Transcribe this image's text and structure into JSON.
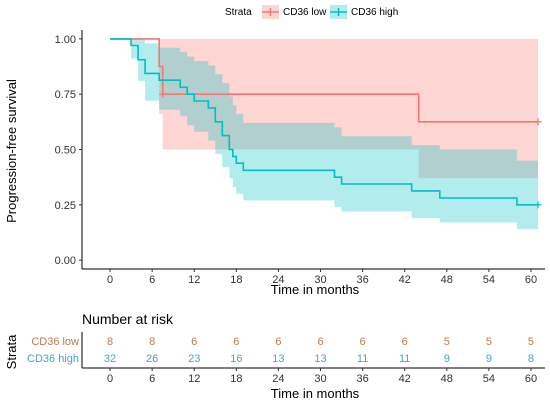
{
  "chart_data": [
    {
      "type": "line",
      "subtype": "kaplan-meier",
      "title": "",
      "xlabel": "Time in months",
      "ylabel": "Progression-free survival",
      "xlim": [
        -4,
        62
      ],
      "ylim": [
        -0.04,
        1.04
      ],
      "x_ticks": [
        0,
        6,
        12,
        18,
        24,
        30,
        36,
        42,
        48,
        54,
        60
      ],
      "y_ticks": [
        0,
        0.25,
        0.5,
        0.75,
        1
      ],
      "y_tick_labels": [
        "0.00",
        "0.25",
        "0.50",
        "0.75",
        "1.00"
      ],
      "grid": false,
      "legend": {
        "title": "Strata",
        "position": "top"
      },
      "series": [
        {
          "name": "CD36 low",
          "color": "#F8766D",
          "time": [
            0,
            7,
            7.5,
            44,
            61
          ],
          "surv": [
            1,
            0.875,
            0.75,
            0.625,
            0.625
          ],
          "upper": [
            1,
            1,
            1,
            1,
            1
          ],
          "lower": [
            1,
            0.66,
            0.5,
            0.37,
            0.37
          ],
          "censor_times": [
            7.5,
            61
          ]
        },
        {
          "name": "CD36 high",
          "color": "#00BFC4",
          "time": [
            0,
            3,
            4,
            5,
            7,
            10,
            11,
            12,
            14,
            15,
            16,
            17,
            17.5,
            18,
            19,
            20,
            32,
            33,
            43,
            47,
            58,
            61
          ],
          "surv": [
            1,
            0.97,
            0.906,
            0.844,
            0.813,
            0.781,
            0.75,
            0.719,
            0.688,
            0.625,
            0.563,
            0.5,
            0.469,
            0.438,
            0.406,
            0.406,
            0.375,
            0.344,
            0.313,
            0.281,
            0.25,
            0.25
          ],
          "upper": [
            1,
            1,
            1,
            0.98,
            0.96,
            0.94,
            0.92,
            0.9,
            0.88,
            0.84,
            0.8,
            0.74,
            0.7,
            0.66,
            0.62,
            0.62,
            0.6,
            0.56,
            0.52,
            0.5,
            0.45,
            0.45
          ],
          "lower": [
            1,
            0.91,
            0.81,
            0.72,
            0.68,
            0.65,
            0.61,
            0.58,
            0.54,
            0.48,
            0.42,
            0.37,
            0.33,
            0.3,
            0.27,
            0.27,
            0.24,
            0.22,
            0.19,
            0.17,
            0.14,
            0.14
          ],
          "censor_times": [
            61
          ]
        }
      ]
    },
    {
      "type": "table",
      "title": "Number at risk",
      "xlabel": "Time in months",
      "ylabel": "Strata",
      "x_ticks": [
        0,
        6,
        12,
        18,
        24,
        30,
        36,
        42,
        48,
        54,
        60
      ],
      "rows": [
        {
          "name": "CD36 low",
          "color": "#C07A4F",
          "values": [
            8,
            8,
            6,
            6,
            6,
            6,
            6,
            6,
            5,
            5,
            5
          ]
        },
        {
          "name": "CD36 high",
          "color": "#47A6C8",
          "values": [
            32,
            26,
            23,
            16,
            13,
            13,
            11,
            11,
            9,
            9,
            8
          ]
        }
      ]
    }
  ]
}
